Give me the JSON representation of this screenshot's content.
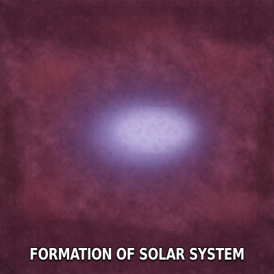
{
  "image": {
    "subject": "nebula-cloud",
    "colors": {
      "background_dark": "#2a1420",
      "background_mid": "#5e2a3e",
      "background_red": "#7a3242",
      "glow_outer": "#6a5aa0",
      "glow_core": "#b8aee0"
    }
  },
  "caption": {
    "text": "FORMATION OF SOLAR SYSTEM",
    "color": "#ffffff"
  }
}
